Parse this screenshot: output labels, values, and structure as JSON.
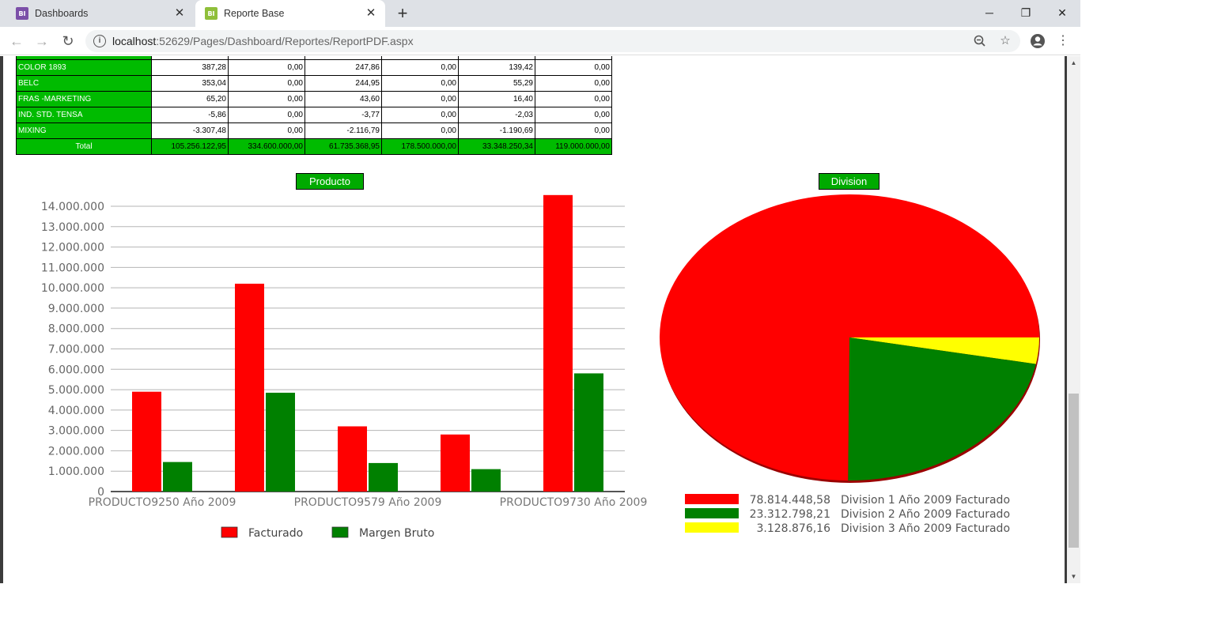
{
  "browser": {
    "tabs": [
      {
        "label": "Dashboards",
        "favicon": "BI"
      },
      {
        "label": "Reporte Base",
        "favicon": "BI"
      }
    ],
    "url_host": "localhost",
    "url_rest": ":52629/Pages/Dashboard/Reportes/ReportPDF.aspx"
  },
  "table": {
    "rows": [
      {
        "name": "COLOR 1893",
        "values": [
          "387,28",
          "0,00",
          "247,86",
          "0,00",
          "139,42",
          "0,00"
        ]
      },
      {
        "name": "BELC",
        "values": [
          "353,04",
          "0,00",
          "244,95",
          "0,00",
          "55,29",
          "0,00"
        ]
      },
      {
        "name": "FRAS -MARKETING",
        "values": [
          "65,20",
          "0,00",
          "43,60",
          "0,00",
          "16,40",
          "0,00"
        ]
      },
      {
        "name": "IND. STD. TENSA",
        "values": [
          "-5,86",
          "0,00",
          "-3,77",
          "0,00",
          "-2,03",
          "0,00"
        ]
      },
      {
        "name": "MIXING",
        "values": [
          "-3.307,48",
          "0,00",
          "-2.116,79",
          "0,00",
          "-1.190,69",
          "0,00"
        ]
      }
    ],
    "total": {
      "name": "Total",
      "values": [
        "105.256.122,95",
        "334.600.000,00",
        "61.735.368,95",
        "178.500.000,00",
        "33.348.250,34",
        "119.000.000,00"
      ]
    }
  },
  "chart_data": [
    {
      "type": "bar",
      "title": "Producto",
      "categories": [
        "PRODUCTO9250 Año 2009",
        "",
        "PRODUCTO9579 Año 2009",
        "",
        "PRODUCTO9730 Año 2009"
      ],
      "series": [
        {
          "name": "Facturado",
          "color": "#ff0000",
          "values": [
            4900000,
            10200000,
            3200000,
            2800000,
            14550000
          ]
        },
        {
          "name": "Margen Bruto",
          "color": "#008000",
          "values": [
            1450000,
            4850000,
            1400000,
            1100000,
            5800000
          ]
        }
      ],
      "ylim": [
        0,
        14000000
      ],
      "yticks": [
        "0",
        "1.000.000",
        "2.000.000",
        "3.000.000",
        "4.000.000",
        "5.000.000",
        "6.000.000",
        "7.000.000",
        "8.000.000",
        "9.000.000",
        "10.000.000",
        "11.000.000",
        "12.000.000",
        "13.000.000",
        "14.000.000"
      ],
      "grid": true,
      "legend": "bottom"
    },
    {
      "type": "pie",
      "title": "Division",
      "slices": [
        {
          "value": 78814448.58,
          "label": "78.814.448,58",
          "name": "Division 1 Año 2009 Facturado",
          "color": "#ff0000"
        },
        {
          "value": 23312798.21,
          "label": "23.312.798,21",
          "name": "Division 2 Año 2009 Facturado",
          "color": "#008000"
        },
        {
          "value": 3128876.16,
          "label": "3.128.876,16",
          "name": "Division 3 Año 2009 Facturado",
          "color": "#ffff00"
        }
      ],
      "legend": "bottom"
    }
  ]
}
